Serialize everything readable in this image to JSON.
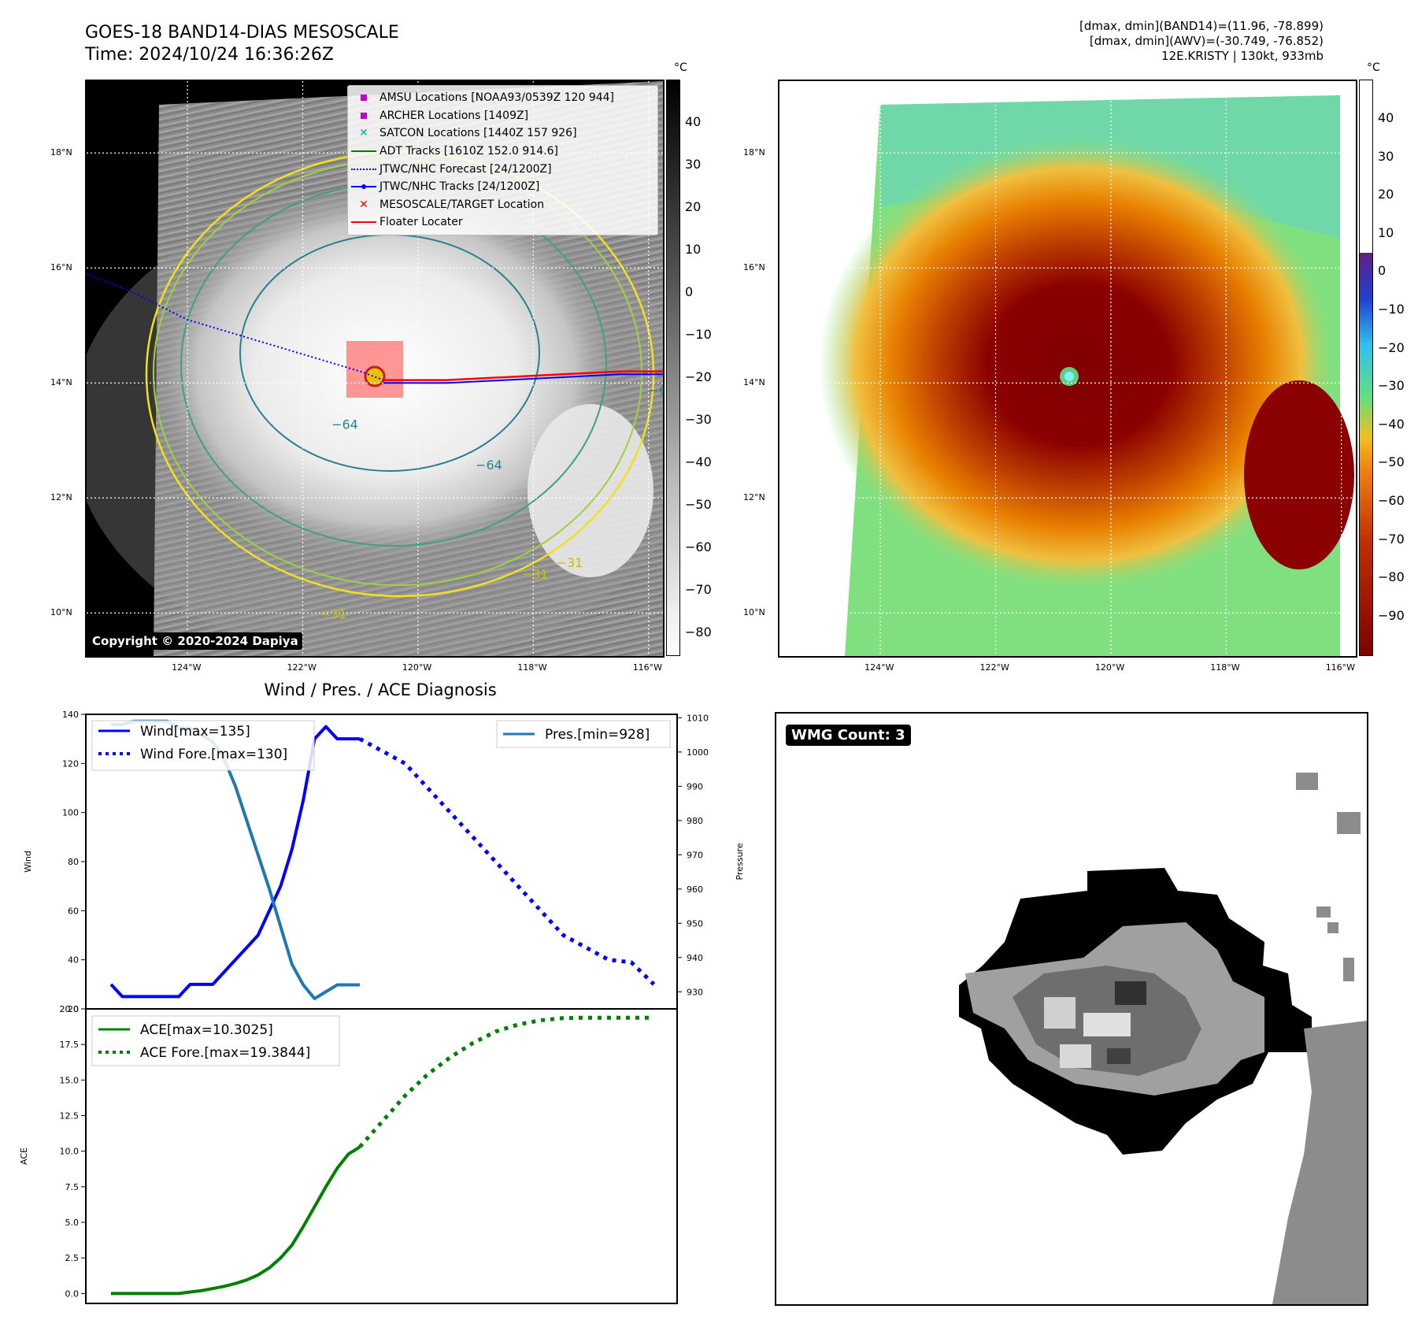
{
  "header": {
    "title_line1": "GOES-18 BAND14-DIAS MESOSCALE",
    "title_line2": "Time: 2024/10/24 16:36:26Z",
    "info_line1": "[dmax, dmin](BAND14)=(11.96, -78.899)",
    "info_line2": "[dmax, dmin](AWV)=(-30.749, -76.852)",
    "info_line3": "12E.KRISTY | 130kt, 933mb"
  },
  "map_axes": {
    "lat_labels": [
      "18°N",
      "16°N",
      "14°N",
      "12°N",
      "10°N"
    ],
    "lat_values": [
      18,
      16,
      14,
      12,
      10
    ],
    "lon_labels": [
      "124°W",
      "122°W",
      "120°W",
      "118°W",
      "116°W"
    ],
    "lon_values": [
      -124,
      -122,
      -120,
      -118,
      -116
    ],
    "lon_range": [
      -125.75,
      -115.75
    ],
    "lat_range": [
      9.25,
      19.25
    ]
  },
  "ir_panel": {
    "colorbar_unit": "°C",
    "colorbar_ticks": [
      "40",
      "30",
      "20",
      "10",
      "0",
      "−10",
      "−20",
      "−30",
      "−40",
      "−50",
      "−60",
      "−70",
      "−80"
    ],
    "contour_labels": [
      "−64",
      "−64",
      "−64",
      "−31",
      "−31",
      "−31"
    ],
    "copyright": "Copyright © 2020-2024 Dapiya",
    "legend": [
      {
        "label": "AMSU Locations [NOAA93/0539Z 120 944]",
        "symbol": "square",
        "color": "#c000c0"
      },
      {
        "label": "ARCHER Locations [1409Z]",
        "symbol": "square",
        "color": "#c000c0"
      },
      {
        "label": "SATCON Locations [1440Z 157 926]",
        "symbol": "x",
        "color": "#00b0b0"
      },
      {
        "label": "ADT Tracks [1610Z 152.0 914.6]",
        "symbol": "line",
        "color": "#008000"
      },
      {
        "label": "JTWC/NHC Forecast [24/1200Z]",
        "symbol": "dotted",
        "color": "#0000ff"
      },
      {
        "label": "JTWC/NHC Tracks [24/1200Z]",
        "symbol": "line-dot",
        "color": "#0000ff"
      },
      {
        "label": "MESOSCALE/TARGET Location",
        "symbol": "x",
        "color": "#ff0000"
      },
      {
        "label": "Floater Locater",
        "symbol": "line",
        "color": "#ff0000"
      }
    ]
  },
  "awv_panel": {
    "colorbar_unit": "°C",
    "colorbar_ticks": [
      "40",
      "30",
      "20",
      "10",
      "0",
      "−10",
      "−20",
      "−30",
      "−40",
      "−50",
      "−60",
      "−70",
      "−80",
      "−90"
    ]
  },
  "diag_title": "Wind / Pres. / ACE Diagnosis",
  "wind_chart": {
    "ylabel_left": "Wind",
    "ylabel_right": "Pressure",
    "left_ticks": [
      "140",
      "120",
      "100",
      "80",
      "60",
      "40",
      "20"
    ],
    "right_ticks": [
      "1010",
      "1000",
      "990",
      "980",
      "970",
      "960",
      "950",
      "940",
      "930"
    ],
    "legend_wind": "Wind[max=135]",
    "legend_wind_fore": "Wind Fore.[max=130]",
    "legend_pres": "Pres.[min=928]"
  },
  "ace_chart": {
    "ylabel": "ACE",
    "ticks": [
      "20.0",
      "17.5",
      "15.0",
      "12.5",
      "10.0",
      "7.5",
      "5.0",
      "2.5",
      "0.0"
    ],
    "legend_ace": "ACE[max=10.3025]",
    "legend_ace_fore": "ACE Fore.[max=19.3844]"
  },
  "wmg": {
    "badge": "WMG Count: 3"
  },
  "chart_data": [
    {
      "type": "line",
      "title": "Wind / Pres. / ACE Diagnosis",
      "ylabel": "Wind",
      "ylim": [
        20,
        140
      ],
      "series": [
        {
          "name": "Wind[max=135]",
          "x": [
            0,
            1,
            2,
            3,
            4,
            5,
            6,
            7,
            8,
            9,
            10,
            11,
            12,
            13,
            14,
            15,
            16,
            17,
            18,
            19,
            20,
            21,
            22
          ],
          "values": [
            30,
            25,
            25,
            25,
            25,
            25,
            25,
            30,
            30,
            30,
            35,
            40,
            45,
            50,
            60,
            70,
            85,
            105,
            130,
            135,
            130,
            130,
            130
          ]
        },
        {
          "name": "Wind Fore.[max=130]",
          "x": [
            22,
            24,
            26,
            28,
            30,
            32,
            34,
            36,
            38,
            40,
            42,
            44,
            46,
            48
          ],
          "values": [
            130,
            125,
            120,
            110,
            100,
            90,
            80,
            70,
            60,
            50,
            45,
            40,
            39,
            30
          ]
        }
      ]
    },
    {
      "type": "line",
      "ylabel": "Pressure",
      "ylim": [
        925,
        1011
      ],
      "series": [
        {
          "name": "Pres.[min=928]",
          "x": [
            0,
            1,
            2,
            3,
            4,
            5,
            6,
            7,
            8,
            9,
            10,
            11,
            12,
            13,
            14,
            15,
            16,
            17,
            18,
            19,
            20,
            21,
            22
          ],
          "values": [
            1008,
            1008,
            1009,
            1009,
            1009,
            1009,
            1007,
            1007,
            1005,
            1003,
            998,
            990,
            980,
            970,
            960,
            949,
            938,
            932,
            928,
            930,
            932,
            932,
            932
          ]
        }
      ]
    },
    {
      "type": "line",
      "ylabel": "ACE",
      "ylim": [
        -0.7,
        20.0
      ],
      "series": [
        {
          "name": "ACE[max=10.3025]",
          "x": [
            0,
            1,
            2,
            3,
            4,
            5,
            6,
            7,
            8,
            9,
            10,
            11,
            12,
            13,
            14,
            15,
            16,
            17,
            18,
            19,
            20,
            21,
            22
          ],
          "values": [
            0,
            0,
            0,
            0,
            0,
            0,
            0,
            0.1,
            0.2,
            0.35,
            0.5,
            0.7,
            0.95,
            1.3,
            1.8,
            2.5,
            3.4,
            4.7,
            6.1,
            7.5,
            8.8,
            9.8,
            10.3
          ]
        },
        {
          "name": "ACE Fore.[max=19.3844]",
          "x": [
            22,
            24,
            26,
            28,
            30,
            32,
            34,
            36,
            38,
            40,
            42,
            44,
            46,
            48
          ],
          "values": [
            10.3,
            12.1,
            13.9,
            15.4,
            16.6,
            17.6,
            18.4,
            18.9,
            19.2,
            19.35,
            19.38,
            19.38,
            19.38,
            19.38
          ]
        }
      ]
    }
  ]
}
